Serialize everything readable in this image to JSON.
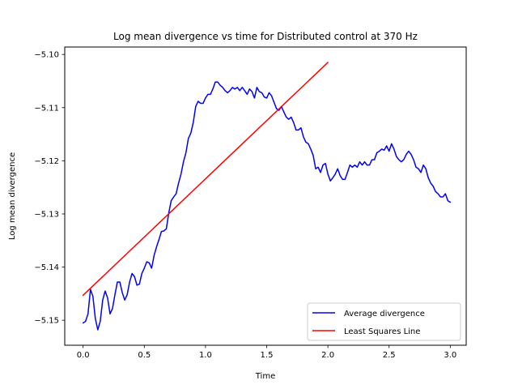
{
  "chart_data": {
    "type": "line",
    "title": "Log mean divergence vs time for Distributed control at 370 Hz",
    "xlabel": "Time",
    "ylabel": "Log mean divergence",
    "xlim": [
      -0.15,
      3.13
    ],
    "ylim": [
      -5.1547,
      -5.0986
    ],
    "x_ticks": [
      0.0,
      0.5,
      1.0,
      1.5,
      2.0,
      2.5,
      3.0
    ],
    "x_tick_labels": [
      "0.0",
      "0.5",
      "1.0",
      "1.5",
      "2.0",
      "2.5",
      "3.0"
    ],
    "y_ticks": [
      -5.15,
      -5.14,
      -5.13,
      -5.12,
      -5.11,
      -5.1
    ],
    "y_tick_labels": [
      "−5.15",
      "−5.14",
      "−5.13",
      "−5.12",
      "−5.11",
      "−5.10"
    ],
    "grid": false,
    "legend_position": "lower-right",
    "series": [
      {
        "name": "Average divergence",
        "color": "#0000ff",
        "x": [
          0.0,
          0.02,
          0.04,
          0.06,
          0.08,
          0.1,
          0.12,
          0.14,
          0.16,
          0.18,
          0.2,
          0.22,
          0.24,
          0.26,
          0.28,
          0.3,
          0.32,
          0.34,
          0.36,
          0.38,
          0.4,
          0.42,
          0.44,
          0.46,
          0.48,
          0.5,
          0.52,
          0.54,
          0.56,
          0.58,
          0.6,
          0.62,
          0.64,
          0.66,
          0.68,
          0.7,
          0.72,
          0.74,
          0.76,
          0.78,
          0.8,
          0.82,
          0.84,
          0.86,
          0.88,
          0.9,
          0.92,
          0.94,
          0.96,
          0.98,
          1.0,
          1.02,
          1.04,
          1.06,
          1.08,
          1.1,
          1.12,
          1.14,
          1.16,
          1.18,
          1.2,
          1.22,
          1.24,
          1.26,
          1.28,
          1.3,
          1.32,
          1.34,
          1.36,
          1.38,
          1.4,
          1.42,
          1.44,
          1.46,
          1.48,
          1.5,
          1.52,
          1.54,
          1.56,
          1.58,
          1.6,
          1.62,
          1.64,
          1.66,
          1.68,
          1.7,
          1.72,
          1.74,
          1.76,
          1.78,
          1.8,
          1.82,
          1.84,
          1.86,
          1.88,
          1.9,
          1.92,
          1.94,
          1.96,
          1.98,
          2.0,
          2.02,
          2.04,
          2.06,
          2.08,
          2.1,
          2.12,
          2.14,
          2.16,
          2.18,
          2.2,
          2.22,
          2.24,
          2.26,
          2.28,
          2.3,
          2.32,
          2.34,
          2.36,
          2.38,
          2.4,
          2.42,
          2.44,
          2.46,
          2.48,
          2.5,
          2.52,
          2.54,
          2.56,
          2.58,
          2.6,
          2.62,
          2.64,
          2.66,
          2.68,
          2.7,
          2.72,
          2.74,
          2.76,
          2.78,
          2.8,
          2.82,
          2.84,
          2.86,
          2.88,
          2.9,
          2.92,
          2.94,
          2.96,
          2.98,
          3.0
        ],
        "y": [
          -5.1505,
          -5.1502,
          -5.1488,
          -5.1442,
          -5.1455,
          -5.1497,
          -5.1518,
          -5.1502,
          -5.1462,
          -5.1445,
          -5.1458,
          -5.1488,
          -5.1478,
          -5.1452,
          -5.1428,
          -5.1428,
          -5.1448,
          -5.1462,
          -5.1452,
          -5.1428,
          -5.1412,
          -5.1418,
          -5.1434,
          -5.1432,
          -5.1412,
          -5.1402,
          -5.139,
          -5.1392,
          -5.1402,
          -5.1378,
          -5.1362,
          -5.1348,
          -5.1333,
          -5.1332,
          -5.1328,
          -5.1298,
          -5.1275,
          -5.1268,
          -5.1262,
          -5.1242,
          -5.1225,
          -5.1202,
          -5.1185,
          -5.1158,
          -5.1148,
          -5.1128,
          -5.1098,
          -5.1088,
          -5.1092,
          -5.1092,
          -5.1082,
          -5.1075,
          -5.1075,
          -5.1065,
          -5.1052,
          -5.1052,
          -5.1058,
          -5.1062,
          -5.1068,
          -5.1072,
          -5.1068,
          -5.1062,
          -5.1065,
          -5.1062,
          -5.1068,
          -5.1062,
          -5.1068,
          -5.1075,
          -5.1065,
          -5.107,
          -5.1082,
          -5.1062,
          -5.107,
          -5.1072,
          -5.108,
          -5.1082,
          -5.1072,
          -5.1078,
          -5.109,
          -5.1102,
          -5.1105,
          -5.1098,
          -5.1108,
          -5.1118,
          -5.1122,
          -5.1118,
          -5.1128,
          -5.1142,
          -5.1142,
          -5.1138,
          -5.1155,
          -5.1165,
          -5.1168,
          -5.1178,
          -5.119,
          -5.1215,
          -5.1212,
          -5.1222,
          -5.1208,
          -5.1205,
          -5.1225,
          -5.1238,
          -5.1232,
          -5.1225,
          -5.1215,
          -5.1228,
          -5.1235,
          -5.1235,
          -5.1222,
          -5.1208,
          -5.1212,
          -5.1208,
          -5.1212,
          -5.1202,
          -5.1208,
          -5.1202,
          -5.1208,
          -5.1208,
          -5.1198,
          -5.1198,
          -5.1185,
          -5.1182,
          -5.1178,
          -5.118,
          -5.1172,
          -5.1182,
          -5.1168,
          -5.1178,
          -5.1192,
          -5.1198,
          -5.1202,
          -5.1198,
          -5.1188,
          -5.1182,
          -5.1188,
          -5.1198,
          -5.1212,
          -5.1215,
          -5.1222,
          -5.1208,
          -5.1215,
          -5.1232,
          -5.1242,
          -5.1248,
          -5.1258,
          -5.1262,
          -5.1268,
          -5.1268,
          -5.1262,
          -5.1275,
          -5.1278
        ]
      },
      {
        "name": "Least Squares Line",
        "color": "#ff0000",
        "x": [
          0.0,
          2.0
        ],
        "y": [
          -5.1453,
          -5.1015
        ]
      }
    ]
  }
}
